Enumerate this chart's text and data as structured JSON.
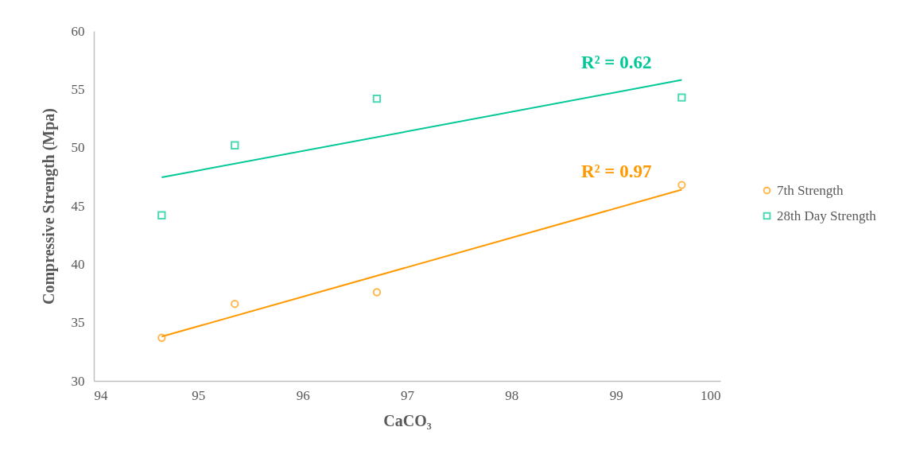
{
  "chart_data": {
    "type": "scatter",
    "xlabel": "CaCO₃",
    "ylabel": "Compressive Strength (Mpa)",
    "xlim": [
      94,
      100
    ],
    "xticks": [
      94,
      95,
      96,
      97,
      98,
      99,
      100
    ],
    "ylim": [
      30,
      60
    ],
    "yticks": [
      30,
      35,
      40,
      45,
      50,
      55,
      60
    ],
    "grid": false,
    "legend": "right",
    "series": [
      {
        "name": "7th Strength",
        "color": "#ff9900",
        "marker": "circle",
        "x": [
          94.65,
          95.35,
          96.71,
          99.63
        ],
        "values": [
          33.7,
          36.6,
          37.6,
          46.8
        ]
      },
      {
        "name": "28th Day Strength",
        "color": "#00c896",
        "marker": "square",
        "x": [
          94.65,
          95.35,
          96.71,
          99.63
        ],
        "values": [
          44.2,
          50.2,
          54.2,
          54.3
        ]
      },
      {
        "type": "line",
        "color": "#ff9900",
        "x": [
          94.65,
          99.63
        ],
        "values": [
          33.8,
          46.4
        ]
      },
      {
        "type": "line",
        "color": "#00c896",
        "x": [
          94.65,
          99.63
        ],
        "values": [
          47.45,
          55.8
        ]
      }
    ],
    "annotations": [
      "R² = 0.97",
      "R² = 0.62"
    ]
  }
}
